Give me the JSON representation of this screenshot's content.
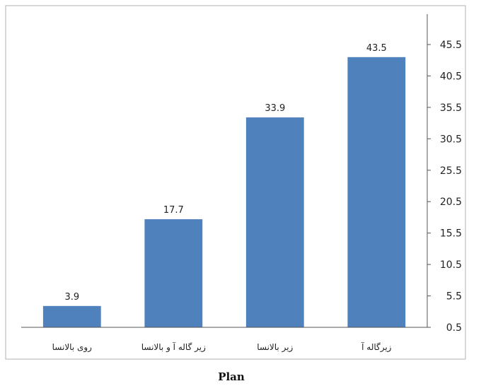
{
  "chart_data": {
    "type": "bar",
    "categories": [
      "روی بالانسا",
      "زیر گاله آ و بالانسا",
      "زیر بالانسا",
      "زیرگاله آ"
    ],
    "values": [
      3.9,
      17.7,
      33.9,
      43.5
    ],
    "data_labels": [
      "3.9",
      "17.7",
      "33.9",
      "43.5"
    ],
    "xlabel": "Plan",
    "ylabel": "",
    "ylim": [
      0.5,
      45.5
    ],
    "yticks": [
      "0.5",
      "5.5",
      "10.5",
      "15.5",
      "20.5",
      "25.5",
      "30.5",
      "35.5",
      "40.5",
      "45.5"
    ],
    "y_axis_position": "right",
    "grid": false,
    "bar_color": "#4f81bd"
  }
}
